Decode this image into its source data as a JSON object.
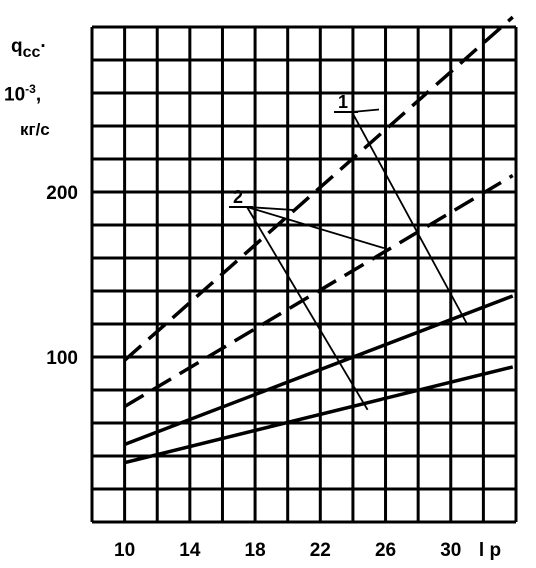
{
  "chart_data": {
    "type": "line",
    "ylabel_lines": [
      "q",
      "сс",
      "·",
      "10",
      "-3",
      ",",
      "кг/с"
    ],
    "xlabel": "l р",
    "xlim": [
      8,
      34
    ],
    "ylim": [
      0,
      300
    ],
    "x_ticks": [
      10,
      14,
      18,
      22,
      26,
      30
    ],
    "y_ticks": [
      100,
      200
    ],
    "grid": true,
    "callouts": [
      "1",
      "2"
    ],
    "series": [
      {
        "x": [
          10,
          33.8
        ],
        "y": [
          98,
          306
        ],
        "style": "dashed"
      },
      {
        "x": [
          10,
          33.8
        ],
        "y": [
          70,
          210
        ],
        "style": "dashed"
      },
      {
        "x": [
          10,
          33.8
        ],
        "y": [
          47,
          137
        ],
        "style": "solid"
      },
      {
        "x": [
          10,
          33.8
        ],
        "y": [
          36,
          94
        ],
        "style": "solid"
      }
    ],
    "callout_targets": {
      "1": [
        [
          25.6,
          250
        ],
        [
          31,
          120
        ]
      ],
      "2": [
        [
          20.5,
          189
        ],
        [
          24.9,
          68
        ],
        [
          25.9,
          166
        ]
      ]
    }
  }
}
